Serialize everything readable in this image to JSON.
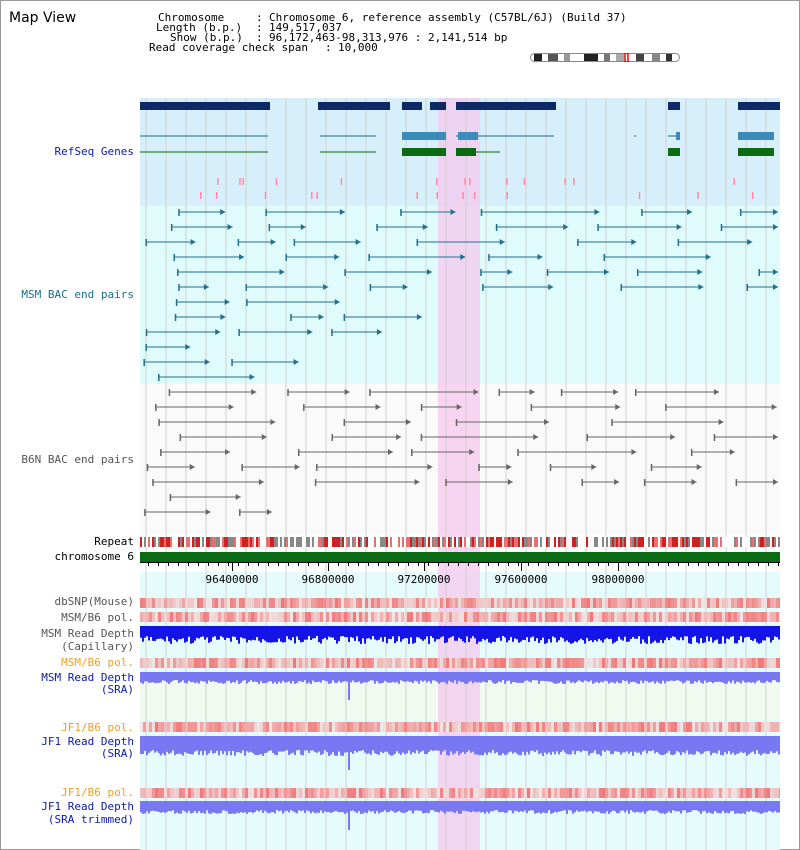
{
  "view": {
    "title": "Map View"
  },
  "info": {
    "chromosome_label": "Chromosome",
    "chromosome_value": "Chromosome 6, reference assembly (C57BL/6J) (Build 37)",
    "length_label": "Length (b.p.)",
    "length_value": "149,517,037",
    "show_label": "Show (b.p.)",
    "show_value": "96,172,463-98,313,976 : 2,141,514 bp",
    "span_label": "Read coverage check span",
    "span_value": "10,000"
  },
  "tracks": {
    "refseq": "RefSeq Genes",
    "msm_bac": "MSM BAC end pairs",
    "b6n_bac": "B6N BAC end pairs",
    "repeat": "Repeat",
    "chromosome": "chromosome 6",
    "dbsnp": "dbSNP(Mouse)",
    "msm_b6_pol_1": "MSM/B6 pol.",
    "msm_read_depth_cap_1": "MSM Read Depth",
    "msm_read_depth_cap_2": "(Capillary)",
    "msm_b6_pol_2": "MSM/B6 pol.",
    "msm_read_depth_sra_1": "MSM Read Depth",
    "msm_read_depth_sra_2": "(SRA)",
    "jf1_b6_pol_1": "JF1/B6 pol.",
    "jf1_read_depth_sra_1": "JF1 Read Depth",
    "jf1_read_depth_sra_2": "(SRA)",
    "jf1_b6_pol_2": "JF1/B6 pol.",
    "jf1_read_depth_trim_1": "JF1 Read Depth",
    "jf1_read_depth_trim_2": "(SRA trimmed)"
  },
  "axis": {
    "ticks": [
      "96400000",
      "96800000",
      "97200000",
      "97600000",
      "98000000"
    ]
  },
  "colors": {
    "refseq_dark": "#0d2a66",
    "refseq_mid": "#3b8cb8",
    "refseq_green": "#0b6b12",
    "msm_bac": "#1f6f8f",
    "b6n_bac": "#666666",
    "highlight": "#f5c8ee",
    "chromosome_bar": "#0b6b12",
    "read_depth_blue": "#1414e6",
    "read_depth_light": "#7878f2"
  }
}
